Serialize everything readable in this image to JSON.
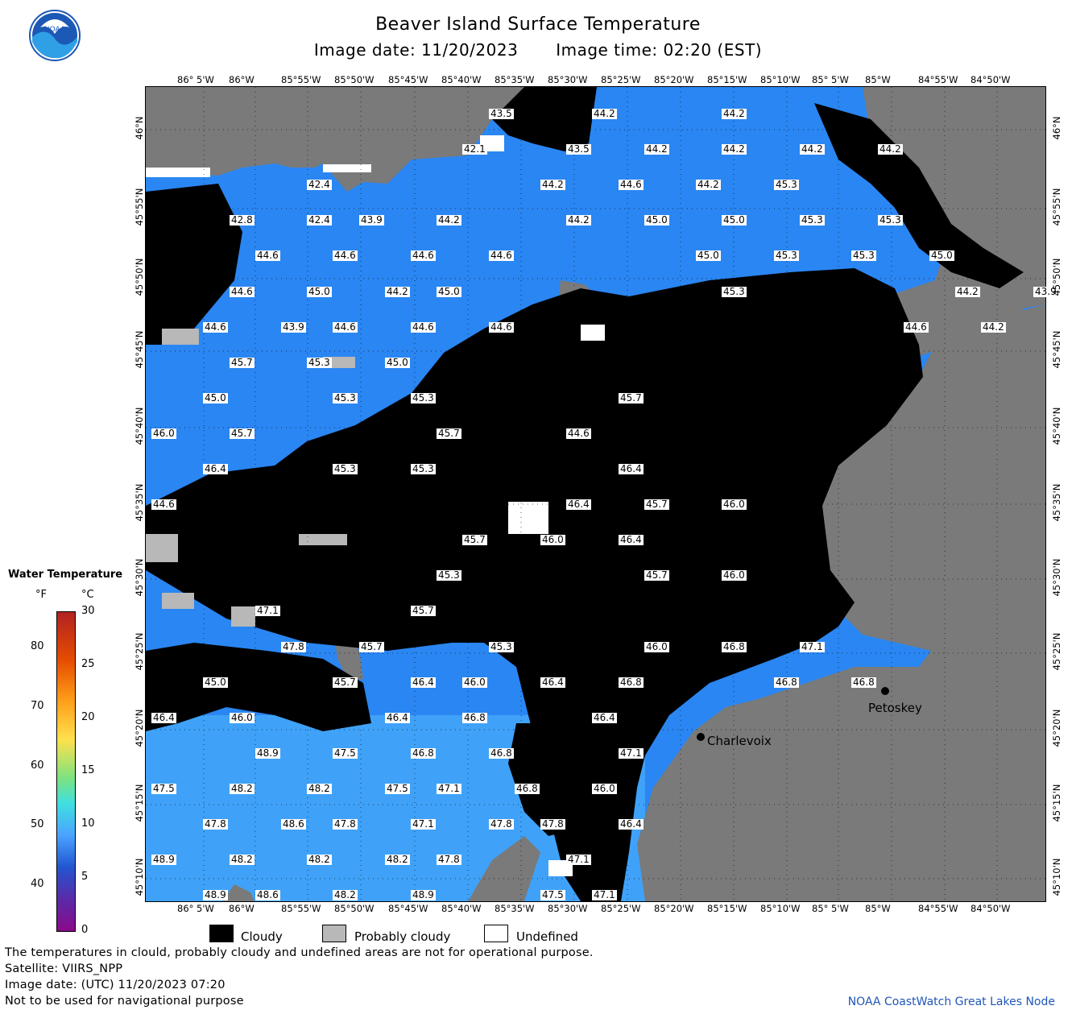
{
  "header": {
    "title": "Beaver Island Surface Temperature",
    "image_date": "Image date: 11/20/2023",
    "image_time": "Image time: 02:20 (EST)"
  },
  "logo_text": "NOAA",
  "colors": {
    "land": "#7a7a7a",
    "cloud": "#000000",
    "water_cold": "#1f72f0",
    "water_warm": "#4ab4ff",
    "probably_cloudy": "#b8b8b8",
    "undefined": "#ffffff"
  },
  "axes": {
    "lon_labels": [
      "86° 5'W",
      "86°W",
      "85°55'W",
      "85°50'W",
      "85°45'W",
      "85°40'W",
      "85°35'W",
      "85°30'W",
      "85°25'W",
      "85°20'W",
      "85°15'W",
      "85°10'W",
      "85° 5'W",
      "85°W",
      "84°55'W",
      "84°50'W"
    ],
    "lat_labels": [
      "46°N",
      "45°55'N",
      "45°50'N",
      "45°45'N",
      "45°40'N",
      "45°35'N",
      "45°30'N",
      "45°25'N",
      "45°20'N",
      "45°15'N",
      "45°10'N"
    ]
  },
  "temperature_labels": [
    {
      "t": "43.5",
      "c": 13,
      "r": 0
    },
    {
      "t": "44.2",
      "c": 17,
      "r": 0
    },
    {
      "t": "44.2",
      "c": 22,
      "r": 0
    },
    {
      "t": "42.1",
      "c": 12,
      "r": 1
    },
    {
      "t": "43.5",
      "c": 16,
      "r": 1
    },
    {
      "t": "44.2",
      "c": 19,
      "r": 1
    },
    {
      "t": "44.2",
      "c": 22,
      "r": 1
    },
    {
      "t": "44.2",
      "c": 25,
      "r": 1
    },
    {
      "t": "44.2",
      "c": 28,
      "r": 1
    },
    {
      "t": "42.4",
      "c": 6,
      "r": 2
    },
    {
      "t": "44.2",
      "c": 15,
      "r": 2
    },
    {
      "t": "44.6",
      "c": 18,
      "r": 2
    },
    {
      "t": "44.2",
      "c": 21,
      "r": 2
    },
    {
      "t": "45.3",
      "c": 24,
      "r": 2
    },
    {
      "t": "42.8",
      "c": 3,
      "r": 3
    },
    {
      "t": "42.4",
      "c": 6,
      "r": 3
    },
    {
      "t": "43.9",
      "c": 8,
      "r": 3
    },
    {
      "t": "44.2",
      "c": 11,
      "r": 3
    },
    {
      "t": "44.2",
      "c": 16,
      "r": 3
    },
    {
      "t": "45.0",
      "c": 19,
      "r": 3
    },
    {
      "t": "45.0",
      "c": 22,
      "r": 3
    },
    {
      "t": "45.3",
      "c": 25,
      "r": 3
    },
    {
      "t": "45.3",
      "c": 28,
      "r": 3
    },
    {
      "t": "44.6",
      "c": 4,
      "r": 4
    },
    {
      "t": "44.6",
      "c": 7,
      "r": 4
    },
    {
      "t": "44.6",
      "c": 10,
      "r": 4
    },
    {
      "t": "44.6",
      "c": 13,
      "r": 4
    },
    {
      "t": "45.0",
      "c": 21,
      "r": 4
    },
    {
      "t": "45.3",
      "c": 24,
      "r": 4
    },
    {
      "t": "45.3",
      "c": 27,
      "r": 4
    },
    {
      "t": "45.0",
      "c": 30,
      "r": 4
    },
    {
      "t": "44.6",
      "c": 3,
      "r": 5
    },
    {
      "t": "45.0",
      "c": 6,
      "r": 5
    },
    {
      "t": "44.2",
      "c": 9,
      "r": 5
    },
    {
      "t": "45.0",
      "c": 11,
      "r": 5
    },
    {
      "t": "45.3",
      "c": 22,
      "r": 5
    },
    {
      "t": "44.2",
      "c": 31,
      "r": 5
    },
    {
      "t": "43.9",
      "c": 34,
      "r": 5
    },
    {
      "t": "44.6",
      "c": 2,
      "r": 6
    },
    {
      "t": "43.9",
      "c": 5,
      "r": 6
    },
    {
      "t": "44.6",
      "c": 7,
      "r": 6
    },
    {
      "t": "44.6",
      "c": 10,
      "r": 6
    },
    {
      "t": "44.6",
      "c": 13,
      "r": 6
    },
    {
      "t": "44.6",
      "c": 29,
      "r": 6
    },
    {
      "t": "44.2",
      "c": 32,
      "r": 6
    },
    {
      "t": "45.7",
      "c": 3,
      "r": 7
    },
    {
      "t": "45.3",
      "c": 6,
      "r": 7
    },
    {
      "t": "45.0",
      "c": 9,
      "r": 7
    },
    {
      "t": "45.0",
      "c": 2,
      "r": 8
    },
    {
      "t": "45.3",
      "c": 7,
      "r": 8
    },
    {
      "t": "45.3",
      "c": 10,
      "r": 8
    },
    {
      "t": "45.7",
      "c": 18,
      "r": 8
    },
    {
      "t": "46.0",
      "c": 0,
      "r": 9
    },
    {
      "t": "45.7",
      "c": 3,
      "r": 9
    },
    {
      "t": "45.7",
      "c": 11,
      "r": 9
    },
    {
      "t": "44.6",
      "c": 16,
      "r": 9
    },
    {
      "t": "46.4",
      "c": 2,
      "r": 10
    },
    {
      "t": "45.3",
      "c": 7,
      "r": 10
    },
    {
      "t": "45.3",
      "c": 10,
      "r": 10
    },
    {
      "t": "46.4",
      "c": 18,
      "r": 10
    },
    {
      "t": "44.6",
      "c": 0,
      "r": 11
    },
    {
      "t": "46.4",
      "c": 16,
      "r": 11
    },
    {
      "t": "45.7",
      "c": 19,
      "r": 11
    },
    {
      "t": "46.0",
      "c": 22,
      "r": 11
    },
    {
      "t": "45.7",
      "c": 12,
      "r": 12
    },
    {
      "t": "46.0",
      "c": 15,
      "r": 12
    },
    {
      "t": "46.4",
      "c": 18,
      "r": 12
    },
    {
      "t": "45.3",
      "c": 11,
      "r": 13
    },
    {
      "t": "45.7",
      "c": 19,
      "r": 13
    },
    {
      "t": "46.0",
      "c": 22,
      "r": 13
    },
    {
      "t": "47.1",
      "c": 4,
      "r": 14
    },
    {
      "t": "45.7",
      "c": 10,
      "r": 14
    },
    {
      "t": "47.8",
      "c": 5,
      "r": 15
    },
    {
      "t": "45.7",
      "c": 8,
      "r": 15
    },
    {
      "t": "45.3",
      "c": 13,
      "r": 15
    },
    {
      "t": "46.0",
      "c": 19,
      "r": 15
    },
    {
      "t": "46.8",
      "c": 22,
      "r": 15
    },
    {
      "t": "47.1",
      "c": 25,
      "r": 15
    },
    {
      "t": "45.0",
      "c": 2,
      "r": 16
    },
    {
      "t": "45.7",
      "c": 7,
      "r": 16
    },
    {
      "t": "46.4",
      "c": 10,
      "r": 16
    },
    {
      "t": "46.0",
      "c": 12,
      "r": 16
    },
    {
      "t": "46.4",
      "c": 15,
      "r": 16
    },
    {
      "t": "46.8",
      "c": 18,
      "r": 16
    },
    {
      "t": "46.8",
      "c": 24,
      "r": 16
    },
    {
      "t": "46.8",
      "c": 27,
      "r": 16
    },
    {
      "t": "46.4",
      "c": 0,
      "r": 17
    },
    {
      "t": "46.0",
      "c": 3,
      "r": 17
    },
    {
      "t": "46.4",
      "c": 9,
      "r": 17
    },
    {
      "t": "46.8",
      "c": 12,
      "r": 17
    },
    {
      "t": "46.4",
      "c": 17,
      "r": 17
    },
    {
      "t": "48.9",
      "c": 4,
      "r": 18
    },
    {
      "t": "47.5",
      "c": 7,
      "r": 18
    },
    {
      "t": "46.8",
      "c": 10,
      "r": 18
    },
    {
      "t": "46.8",
      "c": 13,
      "r": 18
    },
    {
      "t": "47.1",
      "c": 18,
      "r": 18
    },
    {
      "t": "47.5",
      "c": 0,
      "r": 19
    },
    {
      "t": "48.2",
      "c": 3,
      "r": 19
    },
    {
      "t": "48.2",
      "c": 6,
      "r": 19
    },
    {
      "t": "47.5",
      "c": 9,
      "r": 19
    },
    {
      "t": "47.1",
      "c": 11,
      "r": 19
    },
    {
      "t": "46.8",
      "c": 14,
      "r": 19
    },
    {
      "t": "46.0",
      "c": 17,
      "r": 19
    },
    {
      "t": "47.8",
      "c": 2,
      "r": 20
    },
    {
      "t": "48.6",
      "c": 5,
      "r": 20
    },
    {
      "t": "47.8",
      "c": 7,
      "r": 20
    },
    {
      "t": "47.1",
      "c": 10,
      "r": 20
    },
    {
      "t": "47.8",
      "c": 13,
      "r": 20
    },
    {
      "t": "47.8",
      "c": 15,
      "r": 20
    },
    {
      "t": "46.4",
      "c": 18,
      "r": 20
    },
    {
      "t": "48.9",
      "c": 0,
      "r": 21
    },
    {
      "t": "48.2",
      "c": 3,
      "r": 21
    },
    {
      "t": "48.2",
      "c": 6,
      "r": 21
    },
    {
      "t": "48.2",
      "c": 9,
      "r": 21
    },
    {
      "t": "47.8",
      "c": 11,
      "r": 21
    },
    {
      "t": "47.1",
      "c": 16,
      "r": 21
    },
    {
      "t": "48.9",
      "c": 2,
      "r": 22
    },
    {
      "t": "48.6",
      "c": 4,
      "r": 22
    },
    {
      "t": "48.2",
      "c": 7,
      "r": 22
    },
    {
      "t": "48.9",
      "c": 10,
      "r": 22
    },
    {
      "t": "47.5",
      "c": 15,
      "r": 22
    },
    {
      "t": "47.1",
      "c": 17,
      "r": 22
    }
  ],
  "cities": [
    {
      "name": "Petoskey"
    },
    {
      "name": "Charlevoix"
    }
  ],
  "colorbar": {
    "title": "Water Temperature",
    "unit_f": "°F",
    "unit_c": "°C",
    "f_ticks": [
      "80",
      "70",
      "60",
      "50",
      "40"
    ],
    "c_ticks": [
      "30",
      "25",
      "20",
      "15",
      "10",
      "5",
      "0"
    ]
  },
  "legend": {
    "cloudy": "Cloudy",
    "probably_cloudy": "Probably cloudy",
    "undefined": "Undefined"
  },
  "footnotes": [
    "The temperatures in clould, probably cloudy and undefined areas are not for operational purpose.",
    "Satellite: VIIRS_NPP",
    "Image date: (UTC) 11/20/2023  07:20",
    "Not to be used for navigational purpose"
  ],
  "credit": "NOAA CoastWatch Great Lakes Node"
}
